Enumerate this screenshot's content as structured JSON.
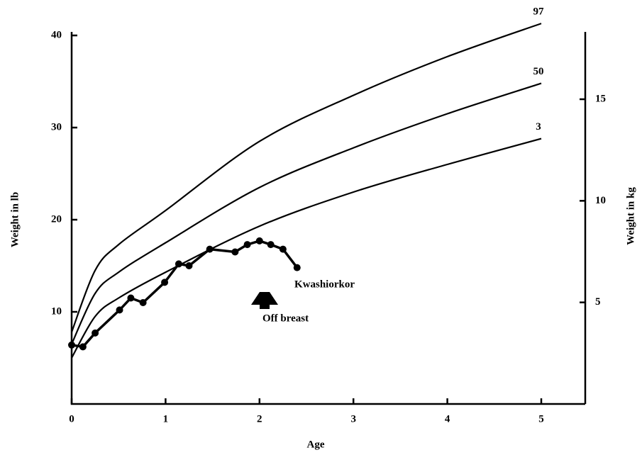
{
  "chart_data": {
    "type": "line",
    "xlabel": "Age",
    "ylabel": "Weight in lb",
    "y2label": "Weight in kg",
    "xlim": [
      0,
      5
    ],
    "xticks": [
      0,
      1,
      2,
      3,
      4,
      5
    ],
    "ylim": [
      0,
      40
    ],
    "yticks": [
      10,
      20,
      30,
      40
    ],
    "y2lim": [
      0,
      18.14
    ],
    "y2ticks": [
      5,
      10,
      15
    ],
    "color": "#000000",
    "series": [
      {
        "name": "97",
        "x": [
          0,
          0.25,
          0.5,
          1,
          2,
          3,
          4,
          5
        ],
        "values": [
          7.8,
          14.5,
          17.3,
          21,
          28.5,
          33.5,
          37.7,
          41.3
        ]
      },
      {
        "name": "50",
        "x": [
          0,
          0.25,
          0.5,
          1,
          2,
          3,
          4,
          5
        ],
        "values": [
          6.5,
          12,
          14.3,
          17.5,
          23.5,
          27.8,
          31.5,
          34.8
        ]
      },
      {
        "name": "3",
        "x": [
          0,
          0.25,
          0.5,
          1,
          2,
          3,
          4,
          5
        ],
        "values": [
          5.0,
          9.5,
          11.5,
          14.3,
          19.3,
          23.0,
          26.0,
          28.8
        ]
      },
      {
        "x": [
          0,
          0.12,
          0.25,
          0.51,
          0.63,
          0.76,
          0.99,
          1.14,
          1.25,
          1.47,
          1.74,
          1.87,
          2.0,
          2.12,
          2.25,
          2.4
        ],
        "values": [
          6.4,
          6.2,
          7.7,
          10.2,
          11.5,
          11,
          13.2,
          15.2,
          15,
          16.8,
          16.5,
          17.3,
          17.7,
          17.3,
          16.8,
          14.8
        ]
      }
    ],
    "annotations": [
      "Kwashiorkor",
      "Off breast"
    ]
  }
}
